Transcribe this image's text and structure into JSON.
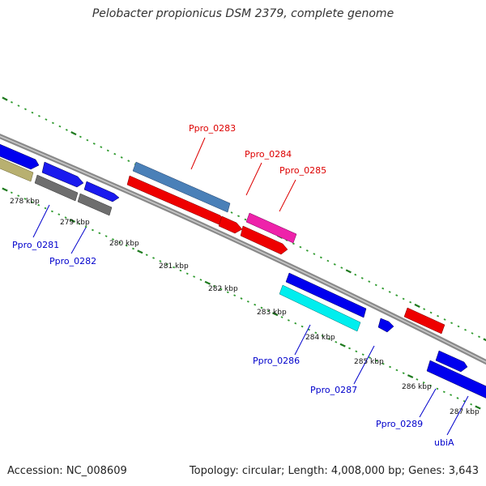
{
  "title": "Pelobacter propionicus DSM 2379, complete genome",
  "footer": {
    "accession": "Accession: NC_008609",
    "topology": "Topology: circular; Length: 4,008,000 bp; Genes: 3,643"
  },
  "colors": {
    "backbone": "#8a8a8a",
    "tick_major": "#1f7a1f",
    "tick_minor": "#2e9a2e",
    "label_red": "#dd0000",
    "label_blue": "#0000cc"
  },
  "kbp_labels": [
    "278 kbp",
    "279 kbp",
    "280 kbp",
    "281 kbp",
    "282 kbp",
    "283 kbp",
    "284 kbp",
    "285 kbp",
    "286 kbp",
    "287 kbp"
  ],
  "gene_labels": [
    {
      "text": "Ppro_0283",
      "color": "red"
    },
    {
      "text": "Ppro_0284",
      "color": "red"
    },
    {
      "text": "Ppro_0285",
      "color": "red"
    },
    {
      "text": "Ppro_0281",
      "color": "blue"
    },
    {
      "text": "Ppro_0282",
      "color": "blue"
    },
    {
      "text": "Ppro_0286",
      "color": "blue"
    },
    {
      "text": "Ppro_0287",
      "color": "blue"
    },
    {
      "text": "Ppro_0289",
      "color": "blue"
    },
    {
      "text": "ubiA",
      "color": "blue"
    }
  ]
}
